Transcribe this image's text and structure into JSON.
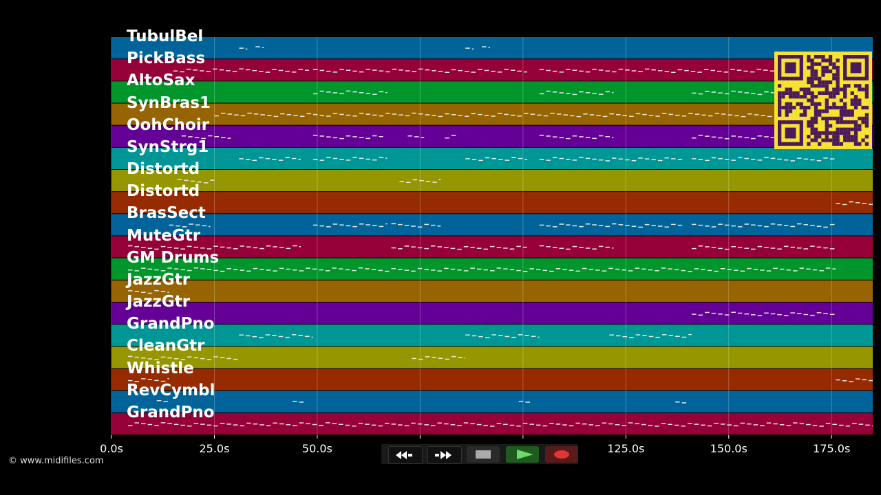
{
  "tracks": [
    {
      "name": "TubulBel",
      "color": "#00649a"
    },
    {
      "name": "PickBass",
      "color": "#960038"
    },
    {
      "name": "AltoSax",
      "color": "#00962c"
    },
    {
      "name": "SynBras1",
      "color": "#966400"
    },
    {
      "name": "OohChoir",
      "color": "#640096"
    },
    {
      "name": "SynStrg1",
      "color": "#009696"
    },
    {
      "name": "Distortd",
      "color": "#969600"
    },
    {
      "name": "Distortd",
      "color": "#962a00"
    },
    {
      "name": "BrasSect",
      "color": "#00649a"
    },
    {
      "name": "MuteGtr",
      "color": "#960038"
    },
    {
      "name": "GM Drums",
      "color": "#00962c"
    },
    {
      "name": "JazzGtr",
      "color": "#966400"
    },
    {
      "name": "JazzGtr",
      "color": "#640096"
    },
    {
      "name": "GrandPno",
      "color": "#009696"
    },
    {
      "name": "CleanGtr",
      "color": "#969600"
    },
    {
      "name": "Whistle",
      "color": "#962a00"
    },
    {
      "name": "RevCymbl",
      "color": "#00649a"
    },
    {
      "name": "GrandPno",
      "color": "#960038"
    }
  ],
  "time_axis": {
    "ticks": [
      "0.0s",
      "25.0s",
      "50.0s",
      "75.0s",
      "100.0s",
      "125.0s",
      "150.0s",
      "175.0s"
    ],
    "tick_values": [
      0,
      25,
      50,
      75,
      100,
      125,
      150,
      175
    ],
    "max_seconds": 185
  },
  "copyright": "© www.midifiles.com",
  "transport": {
    "rewind": "rewind-icon",
    "fast_forward": "fast-forward-icon",
    "stop": "stop-icon",
    "play": "play-icon",
    "record": "record-icon"
  },
  "qr": "qr-code"
}
